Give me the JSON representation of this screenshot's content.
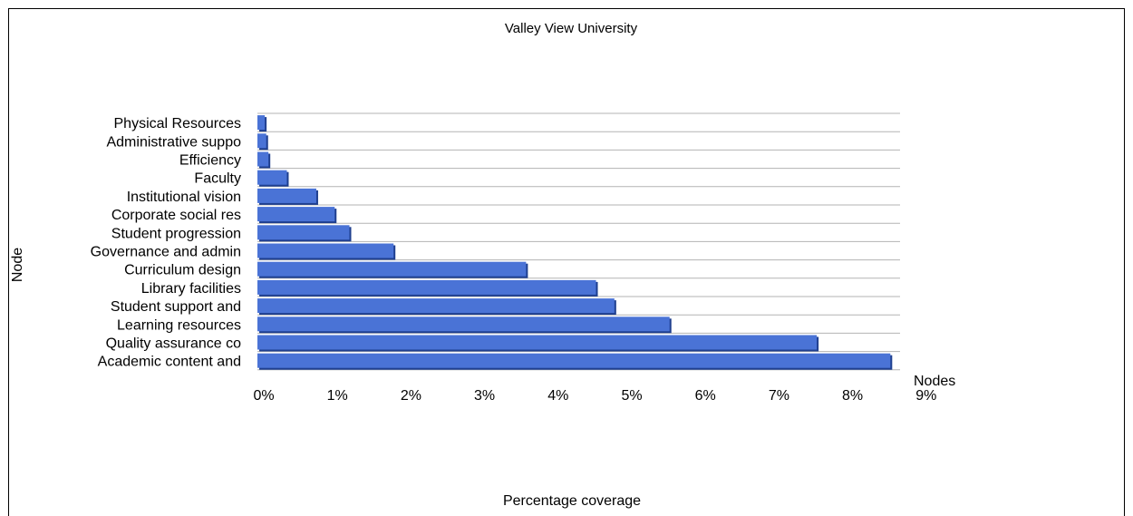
{
  "chart_data": {
    "type": "bar",
    "orientation": "horizontal",
    "title": "Valley View University",
    "ylabel": "Node",
    "xlabel": "Percentage coverage",
    "legend": [
      "Nodes"
    ],
    "categories": [
      "Physical Resources",
      "Administrative suppo",
      "Efficiency",
      "Faculty",
      "Institutional vision",
      "Corporate social res",
      "Student progression",
      "Governance and admin",
      "Curriculum design",
      "Library facilities",
      "Student support and",
      "Learning resources",
      "Quality assurance co",
      "Academic content and"
    ],
    "values": [
      0.1,
      0.12,
      0.15,
      0.4,
      0.8,
      1.05,
      1.25,
      1.85,
      3.65,
      4.6,
      4.85,
      5.6,
      7.6,
      8.6
    ],
    "xlim": [
      0,
      9
    ],
    "xticks": [
      "0%",
      "1%",
      "2%",
      "3%",
      "4%",
      "5%",
      "6%",
      "7%",
      "8%",
      "9%"
    ],
    "grid": true,
    "colors": {
      "bar": "#4a73d6",
      "bar_shadow": "#1f3f8f"
    }
  }
}
